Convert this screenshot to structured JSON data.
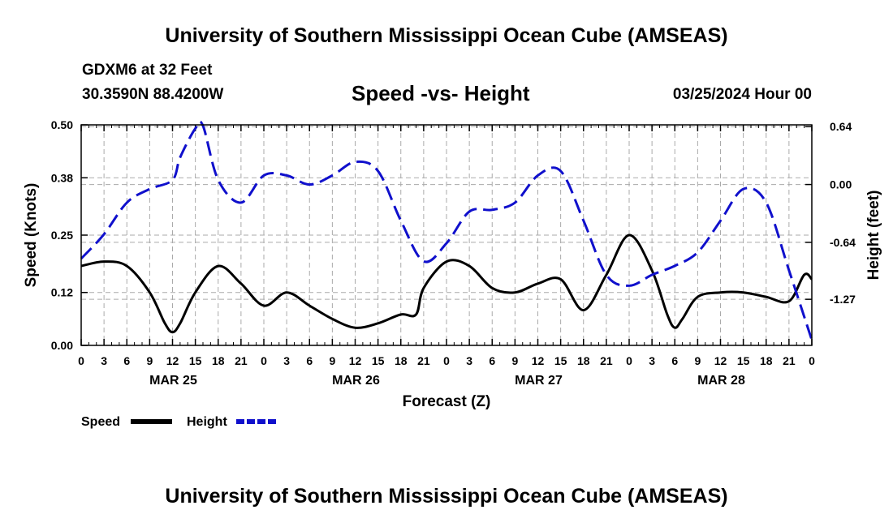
{
  "header": {
    "title": "University of Southern Mississippi Ocean Cube (AMSEAS)",
    "station": "GDXM6 at 32 Feet",
    "coords": "30.3590N  88.4200W",
    "subtitle": "Speed -vs- Height",
    "datetime": "03/25/2024 Hour 00"
  },
  "footer": {
    "title": "University of Southern Mississippi Ocean Cube (AMSEAS)"
  },
  "chart_data": {
    "type": "line",
    "title": "Speed -vs- Height",
    "xlabel": "Forecast (Z)",
    "ylabel": "Speed (Knots)",
    "y2label": "Height (feet)",
    "xlim": [
      0,
      96
    ],
    "ylim": [
      0,
      0.5
    ],
    "y2lim": [
      -1.78,
      0.66
    ],
    "grid": true,
    "x_tick_hours": [
      0,
      3,
      6,
      9,
      12,
      15,
      18,
      21,
      24,
      27,
      30,
      33,
      36,
      39,
      42,
      45,
      48,
      51,
      54,
      57,
      60,
      63,
      66,
      69,
      72,
      75,
      78,
      81,
      84,
      87,
      90,
      93,
      96
    ],
    "x_tick_labels": [
      "0",
      "3",
      "6",
      "9",
      "12",
      "15",
      "18",
      "21",
      "0",
      "3",
      "6",
      "9",
      "12",
      "15",
      "18",
      "21",
      "0",
      "3",
      "6",
      "9",
      "12",
      "15",
      "18",
      "21",
      "0",
      "3",
      "6",
      "9",
      "12",
      "15",
      "18",
      "21",
      "0"
    ],
    "day_labels": [
      {
        "hour": 12,
        "label": "MAR 25"
      },
      {
        "hour": 36,
        "label": "MAR 26"
      },
      {
        "hour": 60,
        "label": "MAR 27"
      },
      {
        "hour": 84,
        "label": "MAR 28"
      }
    ],
    "y_ticks": [
      0.0,
      0.12,
      0.25,
      0.38,
      0.5
    ],
    "y_tick_labels": [
      "0.00",
      "0.12",
      "0.25",
      "0.38",
      "0.50"
    ],
    "y2_ticks": [
      0.64,
      0.0,
      -0.64,
      -1.27
    ],
    "y2_tick_labels": [
      "0.64",
      "0.00",
      "-0.64",
      "-1.27"
    ],
    "series": [
      {
        "name": "Speed",
        "axis": "left",
        "color": "#000000",
        "dash": "solid",
        "x": [
          0,
          3,
          6,
          9,
          11,
          12,
          13,
          15,
          18,
          21,
          24,
          27,
          30,
          33,
          36,
          39,
          42,
          44,
          45,
          48,
          51,
          54,
          57,
          60,
          63,
          66,
          69,
          72,
          75,
          77,
          78,
          79,
          81,
          84,
          87,
          90,
          93,
          95,
          96
        ],
        "values": [
          0.18,
          0.19,
          0.18,
          0.12,
          0.05,
          0.03,
          0.05,
          0.12,
          0.18,
          0.14,
          0.09,
          0.12,
          0.09,
          0.06,
          0.04,
          0.05,
          0.07,
          0.07,
          0.13,
          0.19,
          0.18,
          0.13,
          0.12,
          0.14,
          0.15,
          0.08,
          0.16,
          0.25,
          0.17,
          0.07,
          0.04,
          0.06,
          0.11,
          0.12,
          0.12,
          0.11,
          0.1,
          0.16,
          0.15
        ]
      },
      {
        "name": "Height",
        "axis": "right",
        "color": "#1010cc",
        "dash": "dashed",
        "x": [
          0,
          3,
          6,
          9,
          12,
          13,
          15,
          16,
          18,
          21,
          24,
          27,
          30,
          33,
          36,
          39,
          42,
          45,
          48,
          51,
          54,
          57,
          60,
          63,
          66,
          69,
          72,
          75,
          78,
          81,
          84,
          87,
          90,
          93,
          96
        ],
        "values": [
          -0.82,
          -0.55,
          -0.2,
          -0.05,
          0.05,
          0.3,
          0.62,
          0.65,
          0.05,
          -0.2,
          0.1,
          0.1,
          0.0,
          0.1,
          0.25,
          0.15,
          -0.4,
          -0.85,
          -0.65,
          -0.3,
          -0.28,
          -0.2,
          0.1,
          0.15,
          -0.4,
          -1.0,
          -1.12,
          -1.0,
          -0.9,
          -0.75,
          -0.4,
          -0.05,
          -0.2,
          -0.95,
          -1.72
        ]
      }
    ],
    "legend": [
      {
        "label": "Speed",
        "color": "#000000",
        "dash": "solid"
      },
      {
        "label": "Height",
        "color": "#1010cc",
        "dash": "dashed"
      }
    ],
    "legend_position": "bottom-left"
  }
}
